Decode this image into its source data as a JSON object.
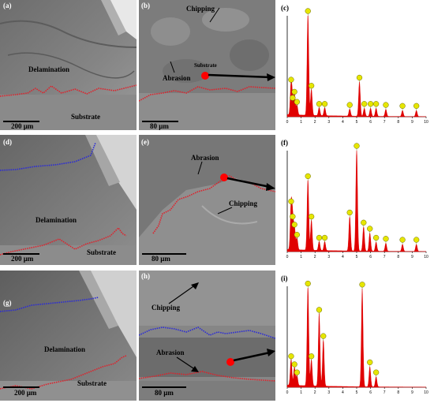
{
  "figure": {
    "panels": [
      {
        "id": "a",
        "label": "(a)",
        "notes": [
          "Delamination",
          "Substrate"
        ],
        "scale_bar": "200 µm"
      },
      {
        "id": "b",
        "label": "(b)",
        "notes": [
          "Chipping",
          "Abrasion",
          "Substrate"
        ],
        "scale_bar": "80 µm"
      },
      {
        "id": "c",
        "label": "(c)"
      },
      {
        "id": "d",
        "label": "(d)",
        "notes": [
          "Delamination",
          "Substrate"
        ],
        "scale_bar": "200 µm"
      },
      {
        "id": "e",
        "label": "(e)",
        "notes": [
          "Abrasion",
          "Chipping"
        ],
        "scale_bar": "80 µm"
      },
      {
        "id": "f",
        "label": "(f)"
      },
      {
        "id": "g",
        "label": "(g)",
        "notes": [
          "Delamination",
          "Substrate"
        ],
        "scale_bar": "200 µm"
      },
      {
        "id": "h",
        "label": "(h)",
        "notes": [
          "Chipping",
          "Abrasion"
        ],
        "scale_bar": "80 µm"
      },
      {
        "id": "i",
        "label": "(i)"
      }
    ],
    "eds_x_ticks": [
      "0",
      "1",
      "2",
      "3",
      "4",
      "5",
      "6",
      "7",
      "8",
      "9",
      "10"
    ],
    "colors": {
      "interface_line": "#e0202a",
      "coating_edge_line": "#2a2ad8",
      "spectrum": "#e00000",
      "peak_label": "#e6e600",
      "spot": "#ff0000"
    }
  },
  "chart_data": [
    {
      "type": "line",
      "panel": "c",
      "xlim": [
        0,
        10
      ],
      "ylim": [
        0,
        100
      ],
      "peaks": [
        {
          "x": 0.28,
          "y": 32
        },
        {
          "x": 0.39,
          "y": 14
        },
        {
          "x": 0.52,
          "y": 20
        },
        {
          "x": 0.7,
          "y": 10
        },
        {
          "x": 1.49,
          "y": 100
        },
        {
          "x": 1.74,
          "y": 26
        },
        {
          "x": 2.3,
          "y": 8
        },
        {
          "x": 2.7,
          "y": 8
        },
        {
          "x": 4.5,
          "y": 7
        },
        {
          "x": 5.2,
          "y": 34
        },
        {
          "x": 5.55,
          "y": 8
        },
        {
          "x": 6.0,
          "y": 8
        },
        {
          "x": 6.4,
          "y": 8
        },
        {
          "x": 7.1,
          "y": 7
        },
        {
          "x": 8.3,
          "y": 6
        },
        {
          "x": 9.3,
          "y": 6
        }
      ]
    },
    {
      "type": "line",
      "panel": "f",
      "xlim": [
        0,
        10
      ],
      "ylim": [
        0,
        100
      ],
      "peaks": [
        {
          "x": 0.28,
          "y": 45
        },
        {
          "x": 0.39,
          "y": 30
        },
        {
          "x": 0.52,
          "y": 22
        },
        {
          "x": 0.7,
          "y": 12
        },
        {
          "x": 1.49,
          "y": 70
        },
        {
          "x": 1.74,
          "y": 30
        },
        {
          "x": 2.3,
          "y": 9
        },
        {
          "x": 2.7,
          "y": 9
        },
        {
          "x": 4.5,
          "y": 34
        },
        {
          "x": 5.0,
          "y": 100
        },
        {
          "x": 5.5,
          "y": 24
        },
        {
          "x": 5.95,
          "y": 18
        },
        {
          "x": 6.4,
          "y": 9
        },
        {
          "x": 7.1,
          "y": 8
        },
        {
          "x": 8.3,
          "y": 7
        },
        {
          "x": 9.3,
          "y": 7
        }
      ]
    },
    {
      "type": "line",
      "panel": "i",
      "xlim": [
        0,
        10
      ],
      "ylim": [
        0,
        100
      ],
      "peaks": [
        {
          "x": 0.28,
          "y": 26
        },
        {
          "x": 0.52,
          "y": 18
        },
        {
          "x": 0.7,
          "y": 10
        },
        {
          "x": 1.49,
          "y": 98
        },
        {
          "x": 1.74,
          "y": 26
        },
        {
          "x": 2.3,
          "y": 72
        },
        {
          "x": 2.6,
          "y": 46
        },
        {
          "x": 5.4,
          "y": 97
        },
        {
          "x": 5.95,
          "y": 20
        },
        {
          "x": 6.4,
          "y": 10
        }
      ]
    }
  ]
}
